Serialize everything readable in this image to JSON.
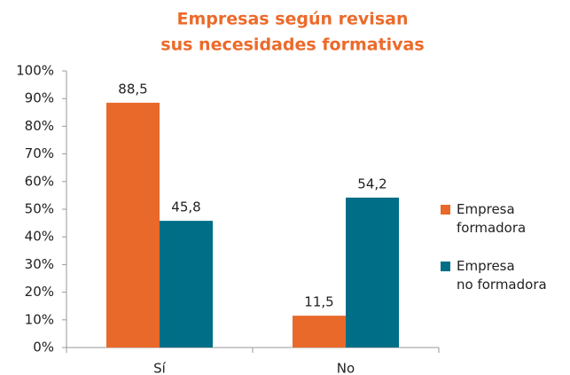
{
  "chart_data": {
    "type": "bar",
    "title": [
      "Empresas según revisan",
      "sus necesidades formativas"
    ],
    "categories": [
      "Sí",
      "No"
    ],
    "series": [
      {
        "name": "Empresa\nformadora",
        "color": "#e8692a",
        "values": [
          88.5,
          11.5
        ],
        "value_labels": [
          "88,5",
          "11,5"
        ]
      },
      {
        "name": "Empresa\nno formadora",
        "color": "#006e87",
        "values": [
          45.8,
          54.2
        ],
        "value_labels": [
          "45,8",
          "54,2"
        ]
      }
    ],
    "ylim": [
      0,
      100
    ],
    "yticks": [
      {
        "value": 0,
        "label": "0%"
      },
      {
        "value": 10,
        "label": "10%"
      },
      {
        "value": 20,
        "label": "20%"
      },
      {
        "value": 30,
        "label": "30%"
      },
      {
        "value": 40,
        "label": "40%"
      },
      {
        "value": 50,
        "label": "50%"
      },
      {
        "value": 60,
        "label": "60%"
      },
      {
        "value": 70,
        "label": "70%"
      },
      {
        "value": 80,
        "label": "80%"
      },
      {
        "value": 90,
        "label": "90%"
      },
      {
        "value": 100,
        "label": "100%"
      }
    ],
    "grid": false,
    "legend": "right"
  }
}
